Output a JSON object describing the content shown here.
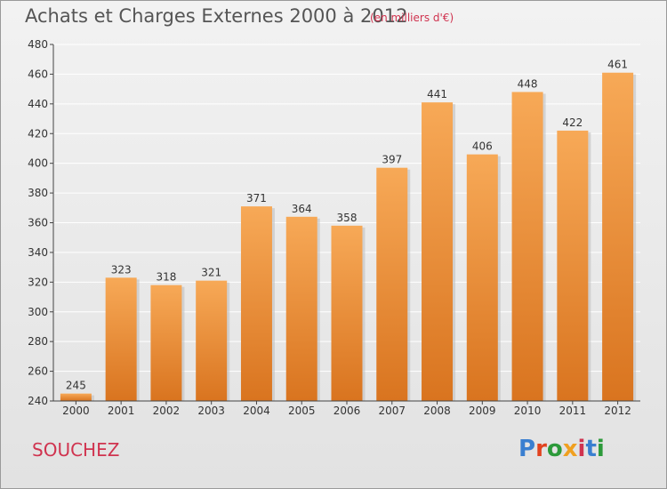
{
  "header": {
    "title": "Achats et Charges Externes 2000 à 2012",
    "subtitle": "(en milliers d'€)"
  },
  "footer": {
    "commune": "SOUCHEZ",
    "brand": "Proxiti",
    "brand_colors": [
      "#3a7fd0",
      "#e2431f",
      "#2c9a3a",
      "#f0a020",
      "#d0334f",
      "#3a7fd0",
      "#2c9a3a"
    ]
  },
  "colors": {
    "bar_light": "#f7a957",
    "bar_dark": "#d9741f",
    "grid": "#ffffff",
    "axis": "#444444"
  },
  "chart_data": {
    "type": "bar",
    "title": "Achats et Charges Externes 2000 à 2012",
    "subtitle": "(en milliers d'€)",
    "categories": [
      "2000",
      "2001",
      "2002",
      "2003",
      "2004",
      "2005",
      "2006",
      "2007",
      "2008",
      "2009",
      "2010",
      "2011",
      "2012"
    ],
    "values": [
      245,
      323,
      318,
      321,
      371,
      364,
      358,
      397,
      441,
      406,
      448,
      422,
      461
    ],
    "data_labels": [
      "245",
      "323",
      "318",
      "321",
      "371",
      "364",
      "358",
      "397",
      "441",
      "406",
      "448",
      "422",
      "461"
    ],
    "yticks": [
      "240",
      "260",
      "280",
      "300",
      "320",
      "340",
      "360",
      "380",
      "400",
      "420",
      "440",
      "460",
      "480"
    ],
    "ylim": [
      240,
      480
    ],
    "grid": true
  }
}
